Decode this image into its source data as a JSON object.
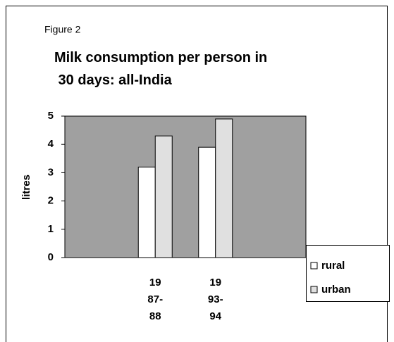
{
  "chart_data": {
    "type": "bar",
    "subtitle": "Figure 2",
    "title": "Milk consumption per person in 30 days: all-India",
    "y_label": "litres",
    "categories": [
      null,
      "1987-88",
      "1993-94",
      null
    ],
    "series": [
      {
        "name": "rural",
        "color": "#ffffff",
        "values": [
          null,
          3.2,
          3.9,
          null
        ]
      },
      {
        "name": "urban",
        "color": "#e0e0e0",
        "values": [
          null,
          4.3,
          4.9,
          null
        ]
      }
    ],
    "ylim": [
      0,
      5
    ],
    "yticks": [
      0,
      1,
      2,
      3,
      4,
      5
    ],
    "plot_background": "#a0a0a0",
    "legend": "right"
  }
}
